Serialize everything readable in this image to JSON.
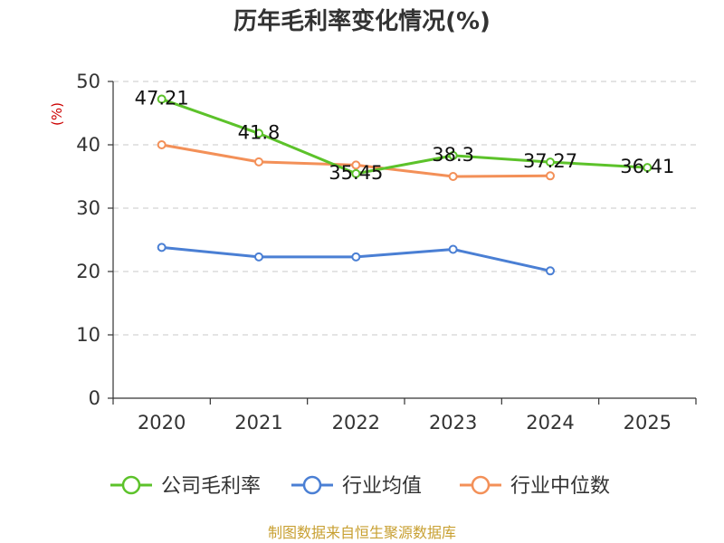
{
  "chart_data": {
    "type": "line",
    "title": "历年毛利率变化情况(%)",
    "ylabel": "(%)",
    "xlabel": "",
    "categories": [
      "2020",
      "2021",
      "2022",
      "2023",
      "2024",
      "2025"
    ],
    "ylim": [
      0,
      50
    ],
    "yticks": [
      0,
      10,
      20,
      30,
      40,
      50
    ],
    "grid": true,
    "legend_position": "bottom",
    "series": [
      {
        "name": "公司毛利率",
        "color": "#5cc22a",
        "values": [
          47.21,
          41.8,
          35.45,
          38.3,
          37.27,
          36.41
        ],
        "labels": [
          "47.21",
          "41.8",
          "35.45",
          "38.3",
          "37.27",
          "36.41"
        ]
      },
      {
        "name": "行业均值",
        "color": "#4a7fd4",
        "values": [
          23.8,
          22.3,
          22.3,
          23.5,
          20.1,
          null
        ]
      },
      {
        "name": "行业中位数",
        "color": "#f39058",
        "values": [
          40.0,
          37.3,
          36.8,
          35.0,
          35.1,
          null
        ]
      }
    ],
    "source": "制图数据来自恒生聚源数据库"
  }
}
